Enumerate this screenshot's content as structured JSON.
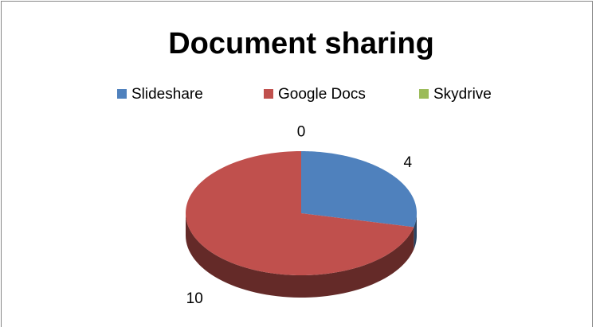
{
  "chart_data": {
    "type": "pie",
    "title": "Document sharing",
    "categories": [
      "Slideshare",
      "Google Docs",
      "Skydrive"
    ],
    "values": [
      4,
      10,
      0
    ],
    "colors": [
      "#4f81bd",
      "#c0504d",
      "#9bbb59"
    ],
    "legend": "top"
  }
}
